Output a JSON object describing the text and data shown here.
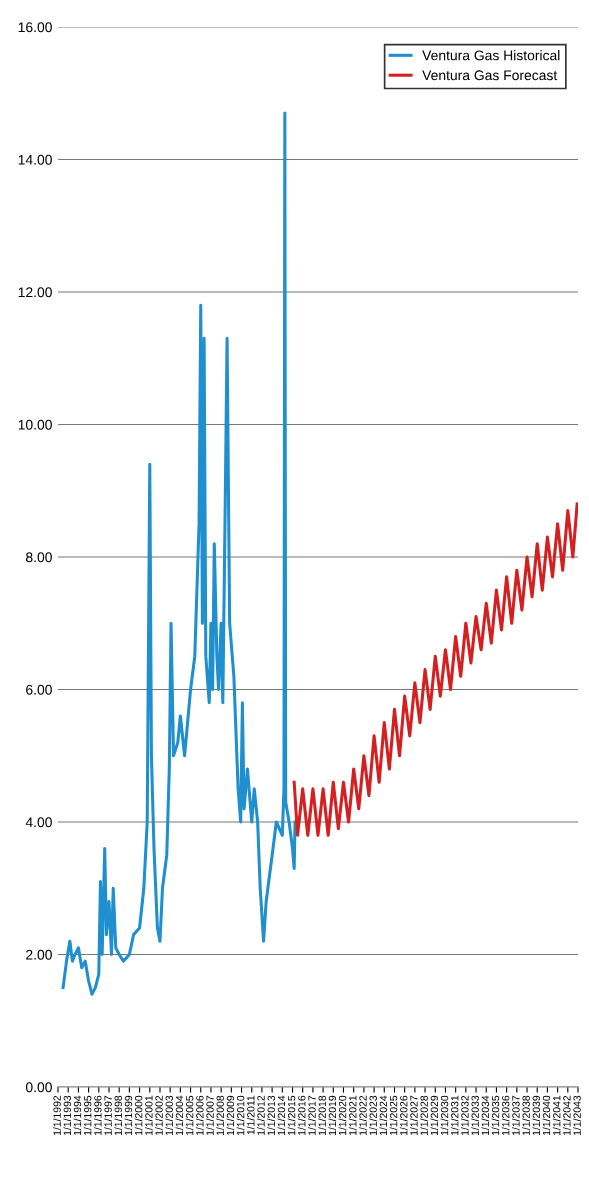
{
  "chart_data": {
    "type": "line",
    "ylim": [
      0,
      16
    ],
    "yticks": [
      {
        "value": 0,
        "label": "0.00"
      },
      {
        "value": 2,
        "label": "2.00"
      },
      {
        "value": 4,
        "label": "4.00"
      },
      {
        "value": 6,
        "label": "6.00"
      },
      {
        "value": 8,
        "label": "8.00"
      },
      {
        "value": 10,
        "label": "10.00"
      },
      {
        "value": 12,
        "label": "12.00"
      },
      {
        "value": 14,
        "label": "14.00"
      },
      {
        "value": 16,
        "label": "16.00"
      }
    ],
    "xlim": [
      "1992-01-01",
      "2043-01-01"
    ],
    "xticks": [
      {
        "value": "1992-01-01",
        "label": "1/1/1992"
      },
      {
        "value": "1993-01-01",
        "label": "1/1/1993"
      },
      {
        "value": "1994-01-01",
        "label": "1/1/1994"
      },
      {
        "value": "1995-01-01",
        "label": "1/1/1995"
      },
      {
        "value": "1996-01-01",
        "label": "1/1/1996"
      },
      {
        "value": "1997-01-01",
        "label": "1/1/1997"
      },
      {
        "value": "1998-01-01",
        "label": "1/1/1998"
      },
      {
        "value": "1999-01-01",
        "label": "1/1/1999"
      },
      {
        "value": "2000-01-01",
        "label": "1/1/2000"
      },
      {
        "value": "2001-01-01",
        "label": "1/1/2001"
      },
      {
        "value": "2002-01-01",
        "label": "1/1/2002"
      },
      {
        "value": "2003-01-01",
        "label": "1/1/2003"
      },
      {
        "value": "2004-01-01",
        "label": "1/1/2004"
      },
      {
        "value": "2005-01-01",
        "label": "1/1/2005"
      },
      {
        "value": "2006-01-01",
        "label": "1/1/2006"
      },
      {
        "value": "2007-01-01",
        "label": "1/1/2007"
      },
      {
        "value": "2008-01-01",
        "label": "1/1/2008"
      },
      {
        "value": "2009-01-01",
        "label": "1/1/2009"
      },
      {
        "value": "2010-01-01",
        "label": "1/1/2010"
      },
      {
        "value": "2011-01-01",
        "label": "1/1/2011"
      },
      {
        "value": "2012-01-01",
        "label": "1/1/2012"
      },
      {
        "value": "2013-01-01",
        "label": "1/1/2013"
      },
      {
        "value": "2014-01-01",
        "label": "1/1/2014"
      },
      {
        "value": "2015-01-01",
        "label": "1/1/2015"
      },
      {
        "value": "2016-01-01",
        "label": "1/1/2016"
      },
      {
        "value": "2017-01-01",
        "label": "1/1/2017"
      },
      {
        "value": "2018-01-01",
        "label": "1/1/2018"
      },
      {
        "value": "2019-01-01",
        "label": "1/1/2019"
      },
      {
        "value": "2020-01-01",
        "label": "1/1/2020"
      },
      {
        "value": "2021-01-01",
        "label": "1/1/2021"
      },
      {
        "value": "2022-01-01",
        "label": "1/1/2022"
      },
      {
        "value": "2023-01-01",
        "label": "1/1/2023"
      },
      {
        "value": "2024-01-01",
        "label": "1/1/2024"
      },
      {
        "value": "2025-01-01",
        "label": "1/1/2025"
      },
      {
        "value": "2026-01-01",
        "label": "1/1/2026"
      },
      {
        "value": "2027-01-01",
        "label": "1/1/2027"
      },
      {
        "value": "2028-01-01",
        "label": "1/1/2028"
      },
      {
        "value": "2029-01-01",
        "label": "1/1/2029"
      },
      {
        "value": "2030-01-01",
        "label": "1/1/2030"
      },
      {
        "value": "2031-01-01",
        "label": "1/1/2031"
      },
      {
        "value": "2032-01-01",
        "label": "1/1/2032"
      },
      {
        "value": "2033-01-01",
        "label": "1/1/2033"
      },
      {
        "value": "2034-01-01",
        "label": "1/1/2034"
      },
      {
        "value": "2035-01-01",
        "label": "1/1/2035"
      },
      {
        "value": "2036-01-01",
        "label": "1/1/2036"
      },
      {
        "value": "2037-01-01",
        "label": "1/1/2037"
      },
      {
        "value": "2038-01-01",
        "label": "1/1/2038"
      },
      {
        "value": "2039-01-01",
        "label": "1/1/2039"
      },
      {
        "value": "2040-01-01",
        "label": "1/1/2040"
      },
      {
        "value": "2041-01-01",
        "label": "1/1/2041"
      },
      {
        "value": "2042-01-01",
        "label": "1/1/2042"
      },
      {
        "value": "2043-01-01",
        "label": "1/1/2043"
      }
    ],
    "grid": "y",
    "legend": "top right",
    "series": [
      {
        "name": "Ventura Gas Historical",
        "color": "#1f8fcf",
        "x": [
          "1992-07",
          "1992-11",
          "1993-03",
          "1993-06",
          "1993-09",
          "1994-01",
          "1994-05",
          "1994-09",
          "1995-01",
          "1995-05",
          "1995-09",
          "1996-01",
          "1996-03",
          "1996-05",
          "1996-08",
          "1996-10",
          "1997-01",
          "1997-04",
          "1997-06",
          "1997-09",
          "1998-01",
          "1998-06",
          "1999-01",
          "1999-06",
          "2000-01",
          "2000-06",
          "2000-10",
          "2001-01",
          "2001-03",
          "2001-06",
          "2001-10",
          "2002-01",
          "2002-04",
          "2002-09",
          "2002-12",
          "2003-02",
          "2003-05",
          "2003-10",
          "2004-01",
          "2004-06",
          "2005-01",
          "2005-06",
          "2005-11",
          "2006-01",
          "2006-03",
          "2006-05",
          "2006-07",
          "2006-11",
          "2007-01",
          "2007-03",
          "2007-05",
          "2007-08",
          "2007-10",
          "2008-01",
          "2008-03",
          "2008-06",
          "2008-08",
          "2008-11",
          "2009-04",
          "2009-09",
          "2009-12",
          "2010-02",
          "2010-04",
          "2010-08",
          "2011-01",
          "2011-04",
          "2011-08",
          "2011-11",
          "2012-03",
          "2012-06",
          "2013-01",
          "2013-06",
          "2014-01",
          "2014-03",
          "2014-04",
          "2014-05",
          "2014-09",
          "2015-01",
          "2015-03",
          "2015-04"
        ],
        "values": [
          1.5,
          1.9,
          2.2,
          1.9,
          2.0,
          2.1,
          1.8,
          1.9,
          1.6,
          1.4,
          1.5,
          1.7,
          3.1,
          2.0,
          3.6,
          2.3,
          2.8,
          2.0,
          3.0,
          2.1,
          2.0,
          1.9,
          2.0,
          2.3,
          2.4,
          3.0,
          4.0,
          9.4,
          5.0,
          3.6,
          2.4,
          2.2,
          3.0,
          3.5,
          4.8,
          7.0,
          5.0,
          5.2,
          5.6,
          5.0,
          6.0,
          6.5,
          8.5,
          11.8,
          7.0,
          11.3,
          6.5,
          5.8,
          7.0,
          6.0,
          8.2,
          6.5,
          6.0,
          7.0,
          5.8,
          9.0,
          11.3,
          7.0,
          6.2,
          4.5,
          4.0,
          5.8,
          4.2,
          4.8,
          4.0,
          4.5,
          4.0,
          3.0,
          2.2,
          2.8,
          3.5,
          4.0,
          3.8,
          4.5,
          14.7,
          4.3,
          4.0,
          3.6,
          3.3,
          4.0
        ]
      },
      {
        "name": "Ventura Gas Forecast",
        "color": "#d42020",
        "x": [
          "2015-03",
          "2015-07",
          "2016-01",
          "2016-07",
          "2017-01",
          "2017-07",
          "2018-01",
          "2018-07",
          "2019-01",
          "2019-07",
          "2020-01",
          "2020-07",
          "2021-01",
          "2021-07",
          "2022-01",
          "2022-07",
          "2023-01",
          "2023-07",
          "2024-01",
          "2024-07",
          "2025-01",
          "2025-07",
          "2026-01",
          "2026-07",
          "2027-01",
          "2027-07",
          "2028-01",
          "2028-07",
          "2029-01",
          "2029-07",
          "2030-01",
          "2030-07",
          "2031-01",
          "2031-07",
          "2032-01",
          "2032-07",
          "2033-01",
          "2033-07",
          "2034-01",
          "2034-07",
          "2035-01",
          "2035-07",
          "2036-01",
          "2036-07",
          "2037-01",
          "2037-07",
          "2038-01",
          "2038-07",
          "2039-01",
          "2039-07",
          "2040-01",
          "2040-07",
          "2041-01",
          "2041-07",
          "2042-01",
          "2042-07",
          "2042-12"
        ],
        "values": [
          4.6,
          3.8,
          4.5,
          3.8,
          4.5,
          3.8,
          4.5,
          3.8,
          4.6,
          3.9,
          4.6,
          4.0,
          4.8,
          4.2,
          5.0,
          4.4,
          5.3,
          4.6,
          5.5,
          4.8,
          5.7,
          5.0,
          5.9,
          5.3,
          6.1,
          5.5,
          6.3,
          5.7,
          6.5,
          5.9,
          6.6,
          6.0,
          6.8,
          6.2,
          7.0,
          6.4,
          7.1,
          6.6,
          7.3,
          6.7,
          7.5,
          6.9,
          7.7,
          7.0,
          7.8,
          7.2,
          8.0,
          7.4,
          8.2,
          7.5,
          8.3,
          7.7,
          8.5,
          7.8,
          8.7,
          8.0,
          8.8
        ]
      }
    ]
  }
}
